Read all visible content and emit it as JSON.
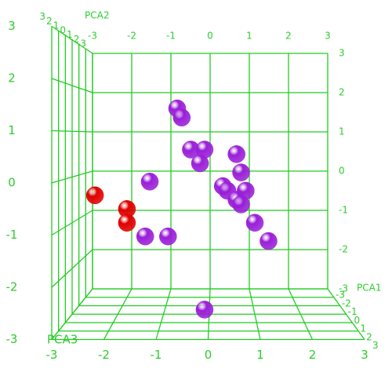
{
  "chart_data": {
    "type": "scatter3d",
    "x_label": "PCA1",
    "y_label": "PCA2",
    "z_label": "PCA3",
    "xlim": [
      -3,
      3
    ],
    "ylim": [
      -3,
      3
    ],
    "zlim": [
      -3,
      3
    ],
    "xticks": [
      -3,
      -2,
      -1,
      0,
      1,
      2,
      3
    ],
    "yticks": [
      -3,
      -2,
      -1,
      0,
      1,
      2,
      3
    ],
    "zticks": [
      -3,
      -2,
      -1,
      0,
      1,
      2,
      3
    ],
    "grid_color": "#22cc22",
    "series": [
      {
        "color": "#9a1fd8",
        "x": [
          -0.7,
          -0.6,
          -0.4,
          -0.1,
          -0.2,
          0.6,
          0.7,
          -1.3,
          0.3,
          0.4,
          0.8,
          0.6,
          0.7,
          1.0,
          1.3,
          -1.4,
          -0.9,
          -0.1
        ],
        "y": [
          1.5,
          1.3,
          0.6,
          0.6,
          0.3,
          0.5,
          0.1,
          -0.1,
          -0.2,
          -0.3,
          -0.3,
          -0.5,
          -0.6,
          -1.0,
          -1.4,
          -1.3,
          -1.3,
          -2.9
        ],
        "z": [
          0,
          0,
          0,
          0,
          0,
          0,
          0,
          0,
          0,
          0,
          0,
          0,
          0,
          0,
          0,
          0,
          0,
          0
        ]
      },
      {
        "color": "#e00000",
        "x": [
          -2.5,
          -1.8,
          -1.8
        ],
        "y": [
          -0.4,
          -0.7,
          -1.0
        ],
        "z": [
          0,
          0,
          0
        ]
      }
    ]
  }
}
